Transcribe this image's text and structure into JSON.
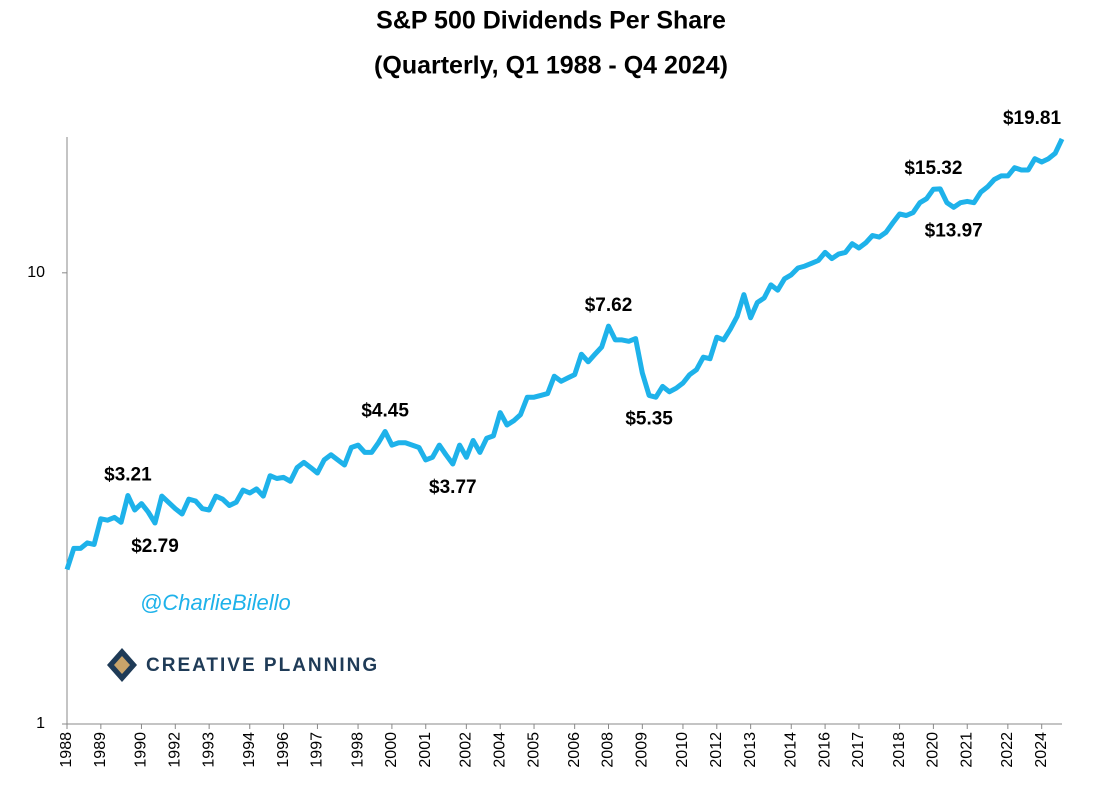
{
  "chart_data": {
    "type": "line",
    "title": "S&P 500 Dividends Per Share",
    "subtitle": "(Quarterly, Q1 1988 - Q4 2024)",
    "watermark": "@CharlieBilello",
    "logo_text": "CREATIVE PLANNING",
    "log_scale": true,
    "color": "#1eb2ea",
    "ylim": [
      1,
      20
    ],
    "yticks": [
      1,
      10
    ],
    "categories": [
      "1988",
      null,
      null,
      null,
      null,
      "1989",
      null,
      null,
      null,
      null,
      null,
      "1990",
      null,
      null,
      null,
      null,
      "1992",
      null,
      null,
      null,
      null,
      "1993",
      null,
      null,
      null,
      null,
      null,
      "1994",
      null,
      null,
      null,
      null,
      "1996",
      null,
      null,
      null,
      null,
      "1997",
      null,
      null,
      null,
      null,
      null,
      "1998",
      null,
      null,
      null,
      null,
      "2000",
      null,
      null,
      null,
      null,
      "2001",
      null,
      null,
      null,
      null,
      null,
      "2002",
      null,
      null,
      null,
      null,
      "2004",
      null,
      null,
      null,
      null,
      "2005",
      null,
      null,
      null,
      null,
      null,
      "2006",
      null,
      null,
      null,
      null,
      "2008",
      null,
      null,
      null,
      null,
      "2009",
      null,
      null,
      null,
      null,
      null,
      "2010",
      null,
      null,
      null,
      null,
      "2012",
      null,
      null,
      null,
      null,
      "2013",
      null,
      null,
      null,
      null,
      null,
      "2014",
      null,
      null,
      null,
      null,
      "2016",
      null,
      null,
      null,
      null,
      "2017",
      null,
      null,
      null,
      null,
      null,
      "2018",
      null,
      null,
      null,
      null,
      "2020",
      null,
      null,
      null,
      null,
      "2021",
      null,
      null,
      null,
      null,
      null,
      "2022",
      null,
      null,
      null,
      null,
      "2024",
      null,
      null,
      null
    ],
    "values": [
      2.2,
      2.45,
      2.45,
      2.52,
      2.5,
      2.85,
      2.83,
      2.87,
      2.8,
      3.21,
      2.98,
      3.08,
      2.95,
      2.79,
      3.2,
      3.1,
      3.0,
      2.92,
      3.15,
      3.12,
      3.0,
      2.98,
      3.2,
      3.15,
      3.05,
      3.1,
      3.3,
      3.25,
      3.32,
      3.2,
      3.55,
      3.5,
      3.52,
      3.45,
      3.7,
      3.8,
      3.7,
      3.6,
      3.85,
      3.95,
      3.85,
      3.75,
      4.1,
      4.15,
      4.0,
      4.0,
      4.2,
      4.45,
      4.15,
      4.2,
      4.2,
      4.15,
      4.1,
      3.85,
      3.9,
      4.15,
      3.95,
      3.77,
      4.15,
      3.9,
      4.25,
      4.0,
      4.3,
      4.35,
      4.9,
      4.6,
      4.7,
      4.85,
      5.3,
      5.3,
      5.35,
      5.4,
      5.9,
      5.75,
      5.85,
      5.95,
      6.6,
      6.35,
      6.6,
      6.85,
      7.62,
      7.1,
      7.1,
      7.05,
      7.15,
      6.0,
      5.35,
      5.3,
      5.6,
      5.45,
      5.55,
      5.7,
      5.95,
      6.1,
      6.5,
      6.45,
      7.2,
      7.1,
      7.5,
      8.0,
      8.95,
      7.95,
      8.6,
      8.8,
      9.4,
      9.15,
      9.7,
      9.9,
      10.25,
      10.35,
      10.5,
      10.65,
      11.1,
      10.75,
      11.0,
      11.1,
      11.6,
      11.35,
      11.65,
      12.1,
      12.0,
      12.3,
      12.9,
      13.5,
      13.4,
      13.6,
      14.3,
      14.6,
      15.32,
      15.35,
      14.3,
      13.97,
      14.3,
      14.4,
      14.3,
      15.1,
      15.5,
      16.1,
      16.4,
      16.4,
      17.1,
      16.9,
      16.9,
      17.9,
      17.6,
      17.9,
      18.4,
      19.81
    ],
    "value_labels": [
      null,
      null,
      null,
      null,
      null,
      null,
      null,
      null,
      null,
      "$3.21",
      null,
      null,
      null,
      "$2.79",
      null,
      null,
      null,
      null,
      null,
      null,
      null,
      null,
      null,
      null,
      null,
      null,
      null,
      null,
      null,
      null,
      null,
      null,
      null,
      null,
      null,
      null,
      null,
      null,
      null,
      null,
      null,
      null,
      null,
      null,
      null,
      null,
      null,
      "$4.45",
      null,
      null,
      null,
      null,
      null,
      null,
      null,
      null,
      null,
      "$3.77",
      null,
      null,
      null,
      null,
      null,
      null,
      null,
      null,
      null,
      null,
      null,
      null,
      null,
      null,
      null,
      null,
      null,
      null,
      null,
      null,
      null,
      null,
      "$7.62",
      null,
      null,
      null,
      null,
      null,
      "$5.35",
      null,
      null,
      null,
      null,
      null,
      null,
      null,
      null,
      null,
      null,
      null,
      null,
      null,
      null,
      null,
      null,
      null,
      null,
      null,
      null,
      null,
      null,
      null,
      null,
      null,
      null,
      null,
      null,
      null,
      null,
      null,
      null,
      null,
      null,
      null,
      null,
      null,
      null,
      null,
      null,
      null,
      "$15.32",
      null,
      null,
      "$13.97",
      null,
      null,
      null,
      null,
      null,
      null,
      null,
      null,
      null,
      null,
      null,
      null,
      null,
      null,
      null,
      "$19.81"
    ]
  }
}
